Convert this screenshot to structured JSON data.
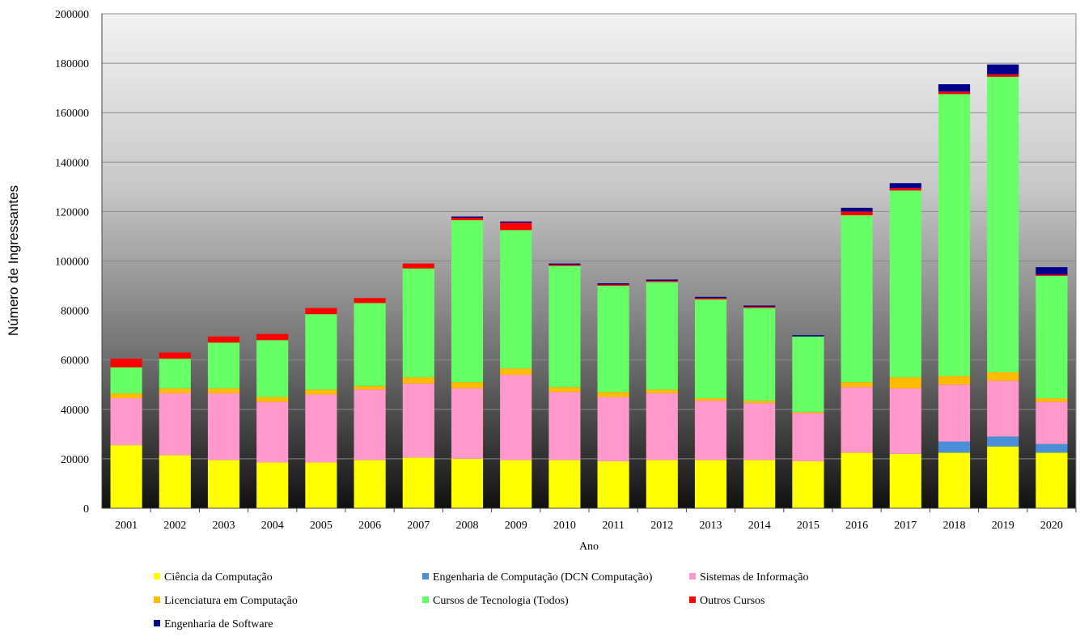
{
  "chart_data": {
    "type": "bar",
    "stacked": true,
    "title": "",
    "xlabel": "Ano",
    "ylabel": "Número de Ingressantes",
    "ylim": [
      0,
      200000
    ],
    "yticks": [
      0,
      20000,
      40000,
      60000,
      80000,
      100000,
      120000,
      140000,
      160000,
      180000,
      200000
    ],
    "grid": true,
    "legend_position": "bottom",
    "categories": [
      "2001",
      "2002",
      "2003",
      "2004",
      "2005",
      "2006",
      "2007",
      "2008",
      "2009",
      "2010",
      "2011",
      "2012",
      "2013",
      "2014",
      "2015",
      "2016",
      "2017",
      "2018",
      "2019",
      "2020"
    ],
    "series": [
      {
        "name": "Ciência da Computação",
        "color": "#ffff00",
        "values": [
          25500,
          21500,
          19500,
          18500,
          18500,
          19500,
          20500,
          20000,
          19500,
          19500,
          19000,
          19500,
          19500,
          19500,
          19000,
          22500,
          22000,
          22500,
          25000,
          22500
        ]
      },
      {
        "name": "Engenharia de Computação (DCN Computação)",
        "color": "#4a90d9",
        "values": [
          0,
          0,
          0,
          0,
          0,
          0,
          0,
          0,
          0,
          0,
          0,
          0,
          0,
          0,
          0,
          0,
          0,
          4500,
          4000,
          3500
        ]
      },
      {
        "name": "Sistemas de Informação",
        "color": "#ff99cc",
        "values": [
          19000,
          25000,
          27000,
          24500,
          27500,
          28500,
          30000,
          28500,
          34500,
          27500,
          26000,
          27000,
          24000,
          23000,
          19500,
          26500,
          26500,
          23000,
          22500,
          17000
        ]
      },
      {
        "name": "Licenciatura em Computação",
        "color": "#ffbb00",
        "values": [
          2000,
          2000,
          2000,
          2000,
          2000,
          1500,
          2500,
          2500,
          2500,
          2000,
          2000,
          1500,
          1000,
          1000,
          500,
          2000,
          4500,
          3500,
          3500,
          1500
        ]
      },
      {
        "name": "Cursos de Tecnologia (Todos)",
        "color": "#66ff66",
        "values": [
          10500,
          12000,
          18500,
          23000,
          30500,
          33500,
          44000,
          65500,
          56000,
          49000,
          43000,
          43500,
          40000,
          37500,
          30500,
          67500,
          75500,
          114000,
          119500,
          49500
        ]
      },
      {
        "name": "Outros Cursos",
        "color": "#ff0000",
        "values": [
          3500,
          2500,
          2500,
          2500,
          2500,
          2000,
          2000,
          1000,
          3000,
          500,
          500,
          500,
          500,
          500,
          0,
          1500,
          1000,
          1000,
          1000,
          500
        ]
      },
      {
        "name": "Engenharia de Software",
        "color": "#00008b",
        "values": [
          0,
          0,
          0,
          0,
          0,
          0,
          0,
          500,
          500,
          500,
          500,
          500,
          500,
          500,
          500,
          1500,
          2000,
          3000,
          4000,
          3000
        ]
      }
    ]
  }
}
